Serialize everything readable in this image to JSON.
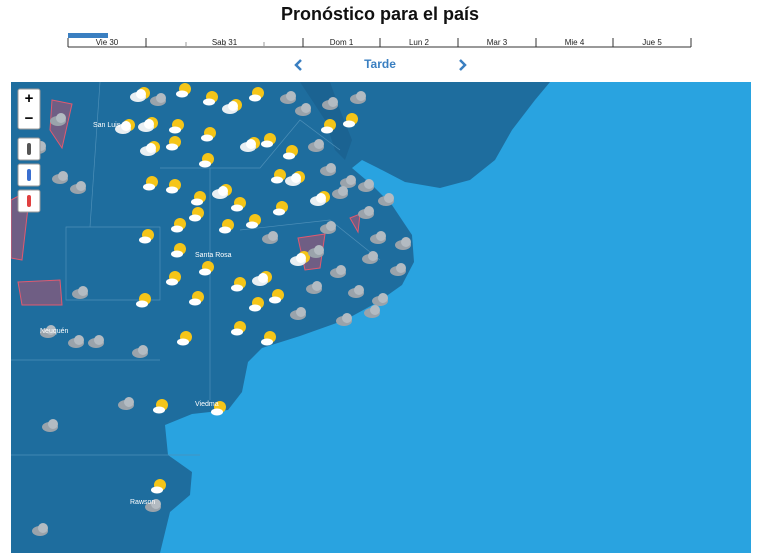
{
  "header": {
    "title": "Pronóstico para el país"
  },
  "timeline": {
    "days": [
      "Vie 30",
      "Sab 31",
      "Dom 1",
      "Lun 2",
      "Mar 3",
      "Mie 4",
      "Jue 5"
    ]
  },
  "period": {
    "label": "Tarde"
  },
  "map": {
    "zoom_in": "+",
    "zoom_out": "−",
    "cities": [
      "San Luis",
      "Santa Rosa",
      "Neuquén",
      "Viedma",
      "Rawson"
    ]
  }
}
